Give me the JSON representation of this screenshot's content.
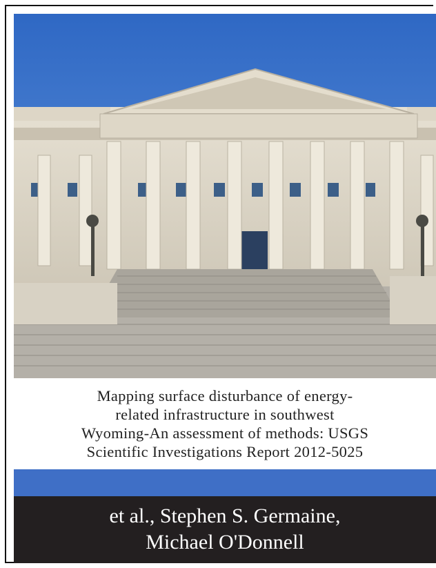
{
  "cover": {
    "title_lines": [
      "Mapping surface disturbance of energy-",
      "related infrastructure in southwest",
      "Wyoming-An assessment of methods: USGS",
      "Scientific Investigations Report 2012-5025"
    ],
    "author_lines": [
      "et al., Stephen S. Germaine,",
      "Michael O'Donnell"
    ]
  }
}
